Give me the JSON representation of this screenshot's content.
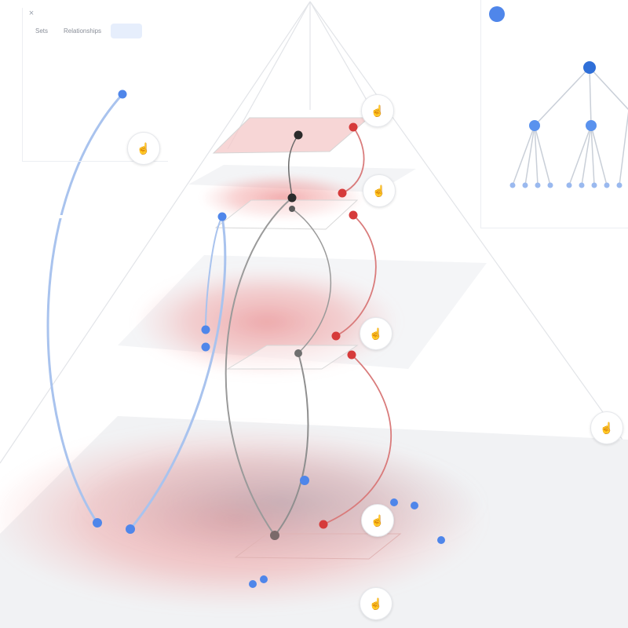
{
  "panel": {
    "close_label": "×",
    "tabs": [
      {
        "label": "Sets"
      },
      {
        "label": "Relationships"
      },
      {
        "label": ""
      }
    ],
    "description": "",
    "link_prefix": "",
    "link_label": ""
  },
  "tree_panel": {
    "title": "",
    "accent": "#4f86ea"
  },
  "annotation": {
    "side_label": ""
  },
  "icons": {
    "top_left": "pointer-hand-icon",
    "layer_handles": [
      "zoom-level-1-icon",
      "zoom-level-2-icon",
      "zoom-level-3-icon",
      "zoom-level-4-icon"
    ],
    "right": "pointer-hand-icon",
    "bottom": "pointer-hand-icon"
  },
  "colors": {
    "layer_red": "#e35a5a",
    "node_blue": "#4f86ea",
    "node_dark": "#2b2b2b",
    "link_red": "#d45858",
    "link_blue": "#8fb1ea",
    "link_gray": "#9a9a9a"
  }
}
